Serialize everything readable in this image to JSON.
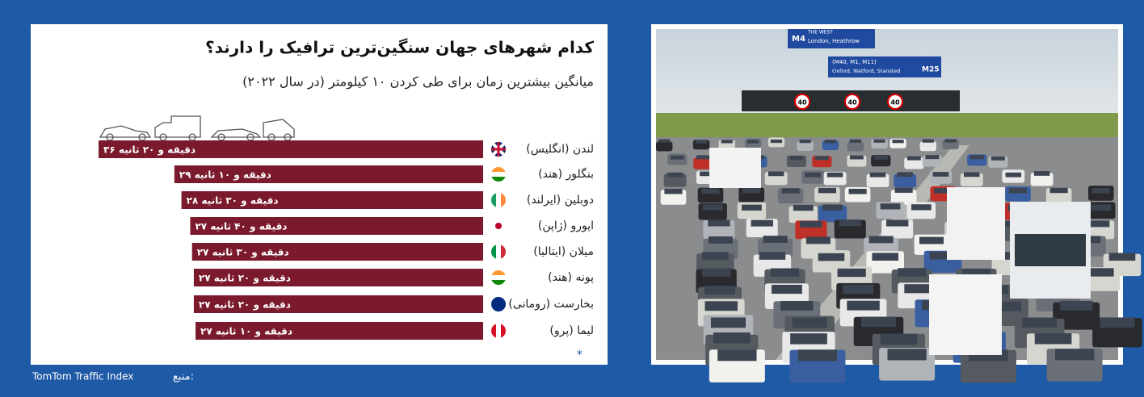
{
  "chart_data": {
    "type": "bar",
    "orientation": "horizontal",
    "title": "کدام شهرهای جهان سنگین‌ترین ترافیک را دارند؟",
    "subtitle": "میانگین بیشترین زمان برای طی کردن ۱۰ کیلومتر (در سال ۲۰۲۲)",
    "categories": [
      "لندن (انگلیس)",
      "بنگلور (هند)",
      "دوبلین (ایرلند)",
      "اپورو (ژاپن)",
      "میلان (ایتالیا)",
      "پونه (هند)",
      "بخارست (رومانی)",
      "لیما (پرو)"
    ],
    "values": [
      36.33,
      29.17,
      28.5,
      27.67,
      27.5,
      27.33,
      27.33,
      27.17
    ],
    "value_labels": [
      "۳۶ دقیقه و ۲۰ ثانیه",
      "۲۹ دقیقه و ۱۰ ثانیه",
      "۲۸ دقیقه و ۳۰ ثانیه",
      "۲۷ دقیقه و ۴۰ ثانیه",
      "۲۷ دقیقه و ۳۰ ثانیه",
      "۲۷ دقیقه و ۲۰ ثانیه",
      "۲۷ دقیقه و ۲۰ ثانیه",
      "۲۷ دقیقه و ۱۰ ثانیه"
    ],
    "color": "#7b1a2c",
    "xlim": [
      0,
      36.33
    ],
    "note": "*",
    "source_label": "منبع:",
    "source": "TomTom Traffic Index"
  },
  "photo": {
    "signs": [
      "M4",
      "THE WEST",
      "London, Heathrow",
      "(M40, M1, M11)",
      "Oxford, Watford, Stansted",
      "M25",
      "40"
    ]
  }
}
